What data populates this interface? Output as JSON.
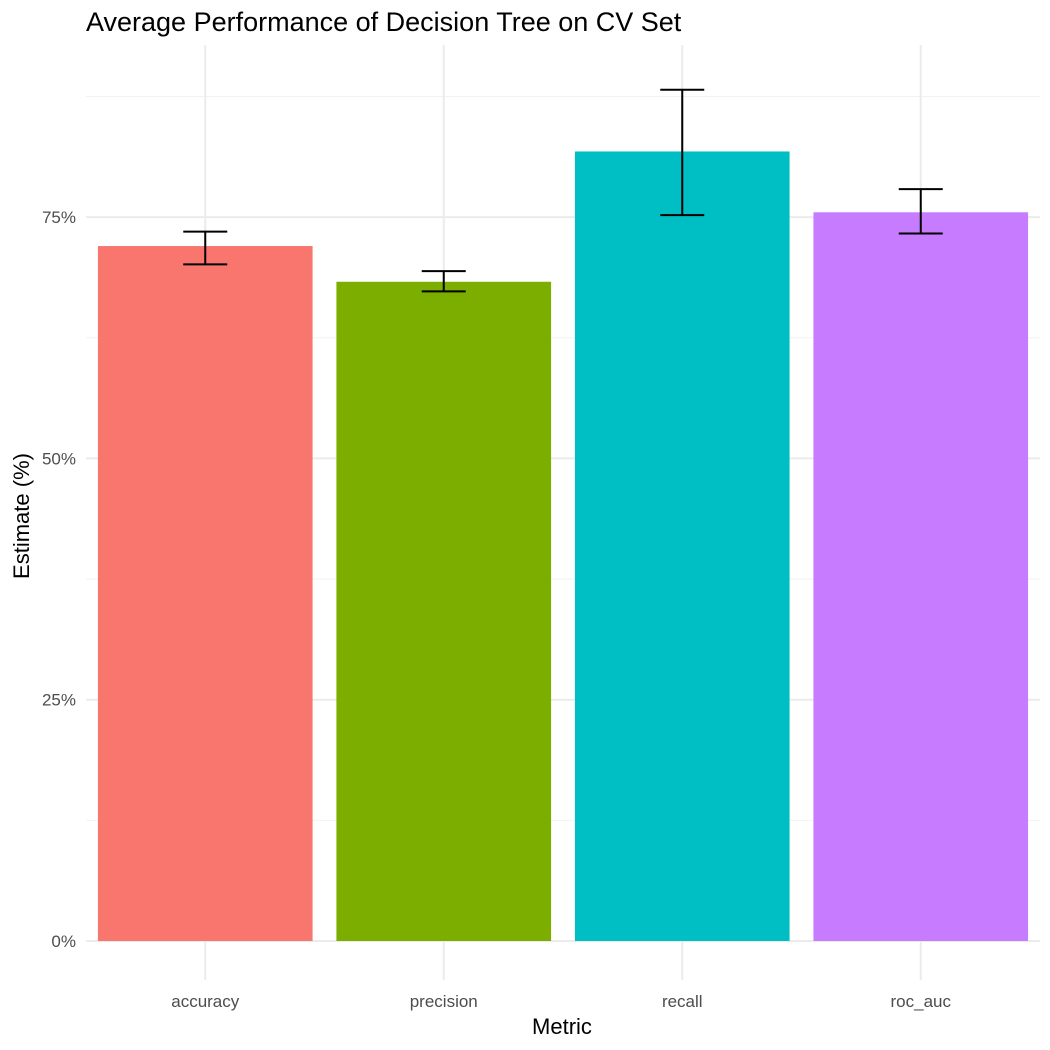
{
  "chart_data": {
    "type": "bar",
    "title": "Average Performance of Decision Tree on CV Set",
    "xlabel": "Metric",
    "ylabel": "Estimate (%)",
    "categories": [
      "accuracy",
      "precision",
      "recall",
      "roc_auc"
    ],
    "values": [
      0.72,
      0.683,
      0.818,
      0.755
    ],
    "error_lower": [
      0.701,
      0.673,
      0.752,
      0.733
    ],
    "error_upper": [
      0.735,
      0.694,
      0.882,
      0.779
    ],
    "colors": [
      "#F8766D",
      "#7CAE00",
      "#00BFC4",
      "#C77CFF"
    ],
    "ylim": [
      0,
      0.9
    ],
    "y_ticks": [
      0,
      0.25,
      0.5,
      0.75
    ],
    "y_tick_labels": [
      "0%",
      "25%",
      "50%",
      "75%"
    ],
    "grid": true,
    "legend": "none"
  }
}
